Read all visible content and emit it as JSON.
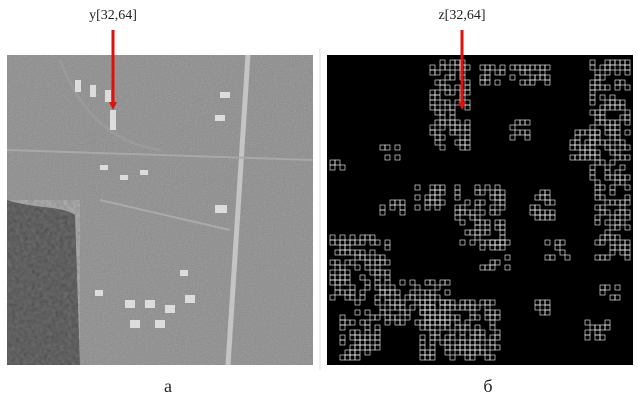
{
  "panels": [
    {
      "label": "y[32,64]",
      "caption": "а"
    },
    {
      "label": "z[32,64]",
      "caption": "б"
    }
  ]
}
